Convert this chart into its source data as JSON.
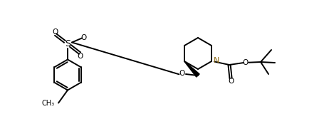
{
  "bg_color": "#ffffff",
  "line_color": "#000000",
  "n_color": "#8B6914",
  "lw": 1.4,
  "figsize": [
    4.55,
    1.67
  ],
  "dpi": 100,
  "xlim": [
    0.0,
    4.55
  ],
  "ylim": [
    0.0,
    1.67
  ]
}
